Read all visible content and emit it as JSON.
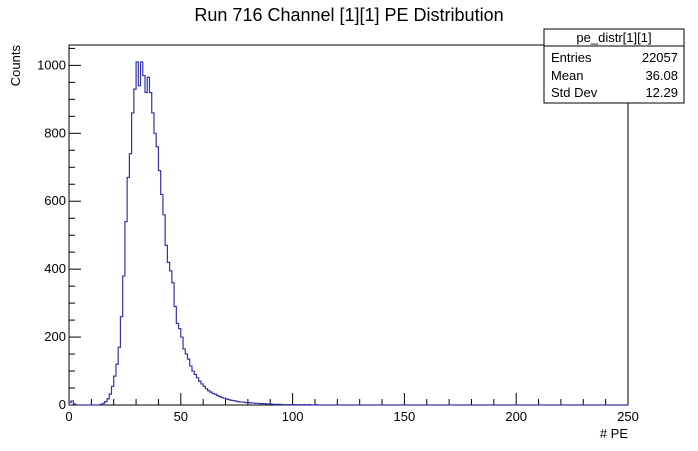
{
  "chart_data": {
    "type": "histogram",
    "title": "Run 716 Channel [1][1] PE Distribution",
    "xlabel": "# PE",
    "ylabel": "Counts",
    "xlim": [
      0,
      250
    ],
    "ylim": [
      0,
      1060
    ],
    "x_ticks": [
      "0",
      "50",
      "100",
      "150",
      "200",
      "250"
    ],
    "y_ticks": [
      "0",
      "200",
      "400",
      "600",
      "800",
      "1000"
    ],
    "bin_width": 1,
    "series": [
      {
        "line_color": "#3333aa",
        "bins": [
          [
            0,
            8
          ],
          [
            1,
            12
          ],
          [
            2,
            3
          ],
          [
            3,
            0
          ],
          [
            4,
            0
          ],
          [
            5,
            0
          ],
          [
            6,
            0
          ],
          [
            7,
            0
          ],
          [
            8,
            0
          ],
          [
            9,
            0
          ],
          [
            10,
            0
          ],
          [
            11,
            0
          ],
          [
            12,
            0
          ],
          [
            13,
            0
          ],
          [
            14,
            2
          ],
          [
            15,
            5
          ],
          [
            16,
            10
          ],
          [
            17,
            18
          ],
          [
            18,
            32
          ],
          [
            19,
            55
          ],
          [
            20,
            85
          ],
          [
            21,
            120
          ],
          [
            22,
            170
          ],
          [
            23,
            260
          ],
          [
            24,
            380
          ],
          [
            25,
            540
          ],
          [
            26,
            670
          ],
          [
            27,
            740
          ],
          [
            28,
            860
          ],
          [
            29,
            930
          ],
          [
            30,
            1010
          ],
          [
            31,
            940
          ],
          [
            32,
            1010
          ],
          [
            33,
            970
          ],
          [
            34,
            920
          ],
          [
            35,
            965
          ],
          [
            36,
            920
          ],
          [
            37,
            860
          ],
          [
            38,
            800
          ],
          [
            39,
            760
          ],
          [
            40,
            690
          ],
          [
            41,
            620
          ],
          [
            42,
            560
          ],
          [
            43,
            470
          ],
          [
            44,
            420
          ],
          [
            45,
            395
          ],
          [
            46,
            360
          ],
          [
            47,
            290
          ],
          [
            48,
            240
          ],
          [
            49,
            225
          ],
          [
            50,
            200
          ],
          [
            51,
            165
          ],
          [
            52,
            150
          ],
          [
            53,
            135
          ],
          [
            54,
            115
          ],
          [
            55,
            100
          ],
          [
            56,
            90
          ],
          [
            57,
            80
          ],
          [
            58,
            70
          ],
          [
            59,
            62
          ],
          [
            60,
            55
          ],
          [
            61,
            48
          ],
          [
            62,
            42
          ],
          [
            63,
            38
          ],
          [
            64,
            34
          ],
          [
            65,
            32
          ],
          [
            66,
            28
          ],
          [
            67,
            25
          ],
          [
            68,
            22
          ],
          [
            69,
            20
          ],
          [
            70,
            18
          ],
          [
            71,
            16
          ],
          [
            72,
            14
          ],
          [
            73,
            13
          ],
          [
            74,
            12
          ],
          [
            75,
            10
          ],
          [
            76,
            9
          ],
          [
            77,
            9
          ],
          [
            78,
            8
          ],
          [
            79,
            7
          ],
          [
            80,
            7
          ],
          [
            81,
            6
          ],
          [
            82,
            6
          ],
          [
            83,
            5
          ],
          [
            84,
            5
          ],
          [
            85,
            4
          ],
          [
            86,
            4
          ],
          [
            87,
            4
          ],
          [
            88,
            3
          ],
          [
            89,
            3
          ],
          [
            90,
            3
          ],
          [
            91,
            2
          ],
          [
            92,
            2
          ],
          [
            93,
            2
          ],
          [
            94,
            2
          ],
          [
            95,
            1
          ],
          [
            96,
            1
          ],
          [
            97,
            1
          ],
          [
            98,
            1
          ],
          [
            99,
            1
          ],
          [
            100,
            1
          ],
          [
            101,
            1
          ],
          [
            102,
            0
          ],
          [
            103,
            1
          ],
          [
            104,
            0
          ],
          [
            105,
            1
          ],
          [
            106,
            0
          ],
          [
            107,
            1
          ],
          [
            108,
            0
          ],
          [
            109,
            0
          ],
          [
            110,
            1
          ]
        ]
      }
    ],
    "stats_box": {
      "title": "pe_distr[1][1]",
      "rows": [
        {
          "label": "Entries",
          "value": "22057"
        },
        {
          "label": "Mean",
          "value": "36.08"
        },
        {
          "label": "Std Dev",
          "value": "12.29"
        }
      ]
    },
    "grid": false
  }
}
